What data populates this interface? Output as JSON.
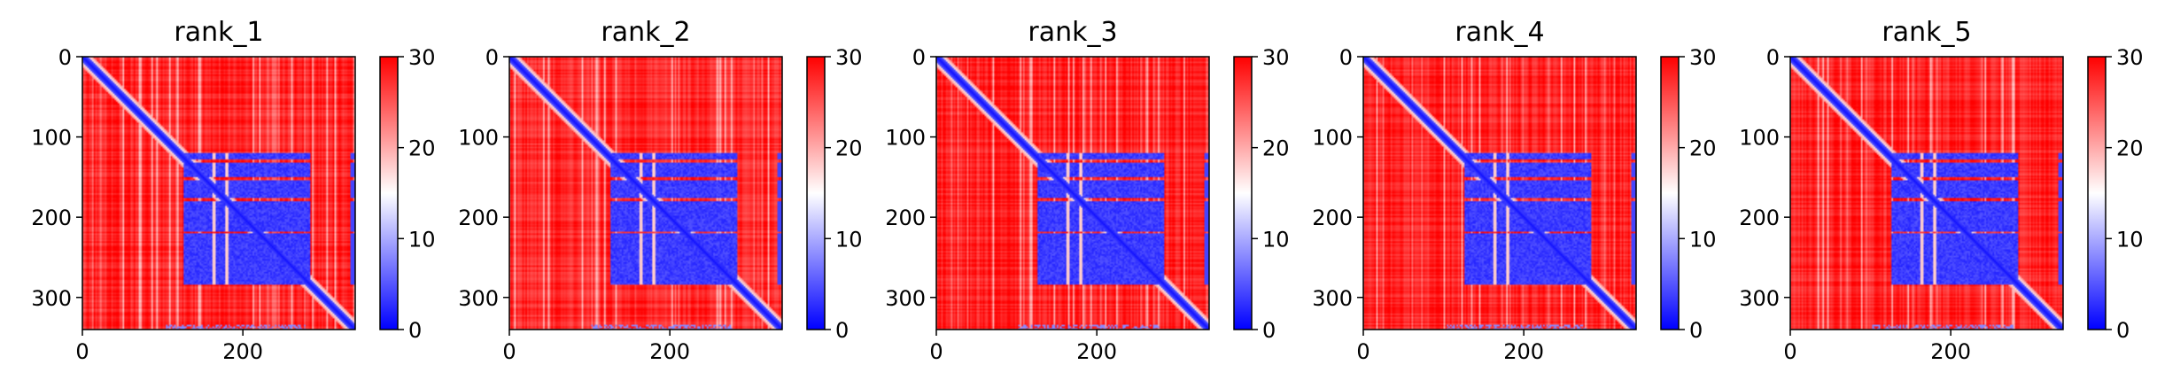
{
  "chart_data": [
    {
      "type": "heatmap",
      "title": "rank_1",
      "xlim": [
        0,
        340
      ],
      "ylim": [
        340,
        0
      ],
      "xticks": [
        0,
        200
      ],
      "yticks": [
        0,
        100,
        200,
        300
      ],
      "colorbar": {
        "min": 0,
        "max": 30,
        "ticks": [
          0,
          10,
          20,
          30
        ],
        "colormap": "bwr",
        "low_color": "#0000ff",
        "mid_color": "#ffffff",
        "high_color": "#ff0000"
      }
    },
    {
      "type": "heatmap",
      "title": "rank_2",
      "xlim": [
        0,
        340
      ],
      "ylim": [
        340,
        0
      ],
      "xticks": [
        0,
        200
      ],
      "yticks": [
        0,
        100,
        200,
        300
      ],
      "colorbar": {
        "min": 0,
        "max": 30,
        "ticks": [
          0,
          10,
          20,
          30
        ],
        "colormap": "bwr",
        "low_color": "#0000ff",
        "mid_color": "#ffffff",
        "high_color": "#ff0000"
      }
    },
    {
      "type": "heatmap",
      "title": "rank_3",
      "xlim": [
        0,
        340
      ],
      "ylim": [
        340,
        0
      ],
      "xticks": [
        0,
        200
      ],
      "yticks": [
        0,
        100,
        200,
        300
      ],
      "colorbar": {
        "min": 0,
        "max": 30,
        "ticks": [
          0,
          10,
          20,
          30
        ],
        "colormap": "bwr",
        "low_color": "#0000ff",
        "mid_color": "#ffffff",
        "high_color": "#ff0000"
      }
    },
    {
      "type": "heatmap",
      "title": "rank_4",
      "xlim": [
        0,
        340
      ],
      "ylim": [
        340,
        0
      ],
      "xticks": [
        0,
        200
      ],
      "yticks": [
        0,
        100,
        200,
        300
      ],
      "colorbar": {
        "min": 0,
        "max": 30,
        "ticks": [
          0,
          10,
          20,
          30
        ],
        "colormap": "bwr",
        "low_color": "#0000ff",
        "mid_color": "#ffffff",
        "high_color": "#ff0000"
      }
    },
    {
      "type": "heatmap",
      "title": "rank_5",
      "xlim": [
        0,
        340
      ],
      "ylim": [
        340,
        0
      ],
      "xticks": [
        0,
        200
      ],
      "yticks": [
        0,
        100,
        200,
        300
      ],
      "colorbar": {
        "min": 0,
        "max": 30,
        "ticks": [
          0,
          10,
          20,
          30
        ],
        "colormap": "bwr",
        "low_color": "#0000ff",
        "mid_color": "#ffffff",
        "high_color": "#ff0000"
      }
    }
  ]
}
